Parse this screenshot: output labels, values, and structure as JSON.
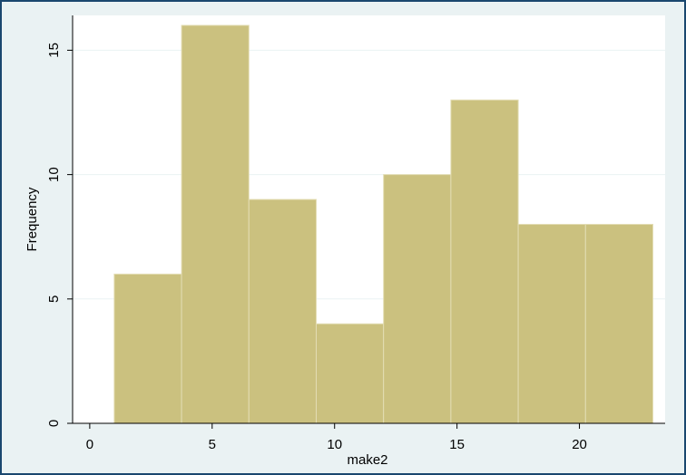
{
  "chart_data": {
    "type": "histogram",
    "x_label": "make2",
    "y_label": "Frequency",
    "bins": [
      1,
      3.75,
      6.5,
      9.25,
      12,
      14.75,
      17.5,
      20.25,
      23
    ],
    "values": [
      6,
      16,
      9,
      4,
      10,
      13,
      8,
      8
    ],
    "color": "#cbc17f",
    "xlim": [
      -0.7,
      23.5
    ],
    "ylim": [
      0,
      16.4
    ],
    "xticks": [
      0,
      5,
      10,
      15,
      20
    ],
    "yticks": [
      0,
      5,
      10,
      15
    ],
    "grid": true
  }
}
